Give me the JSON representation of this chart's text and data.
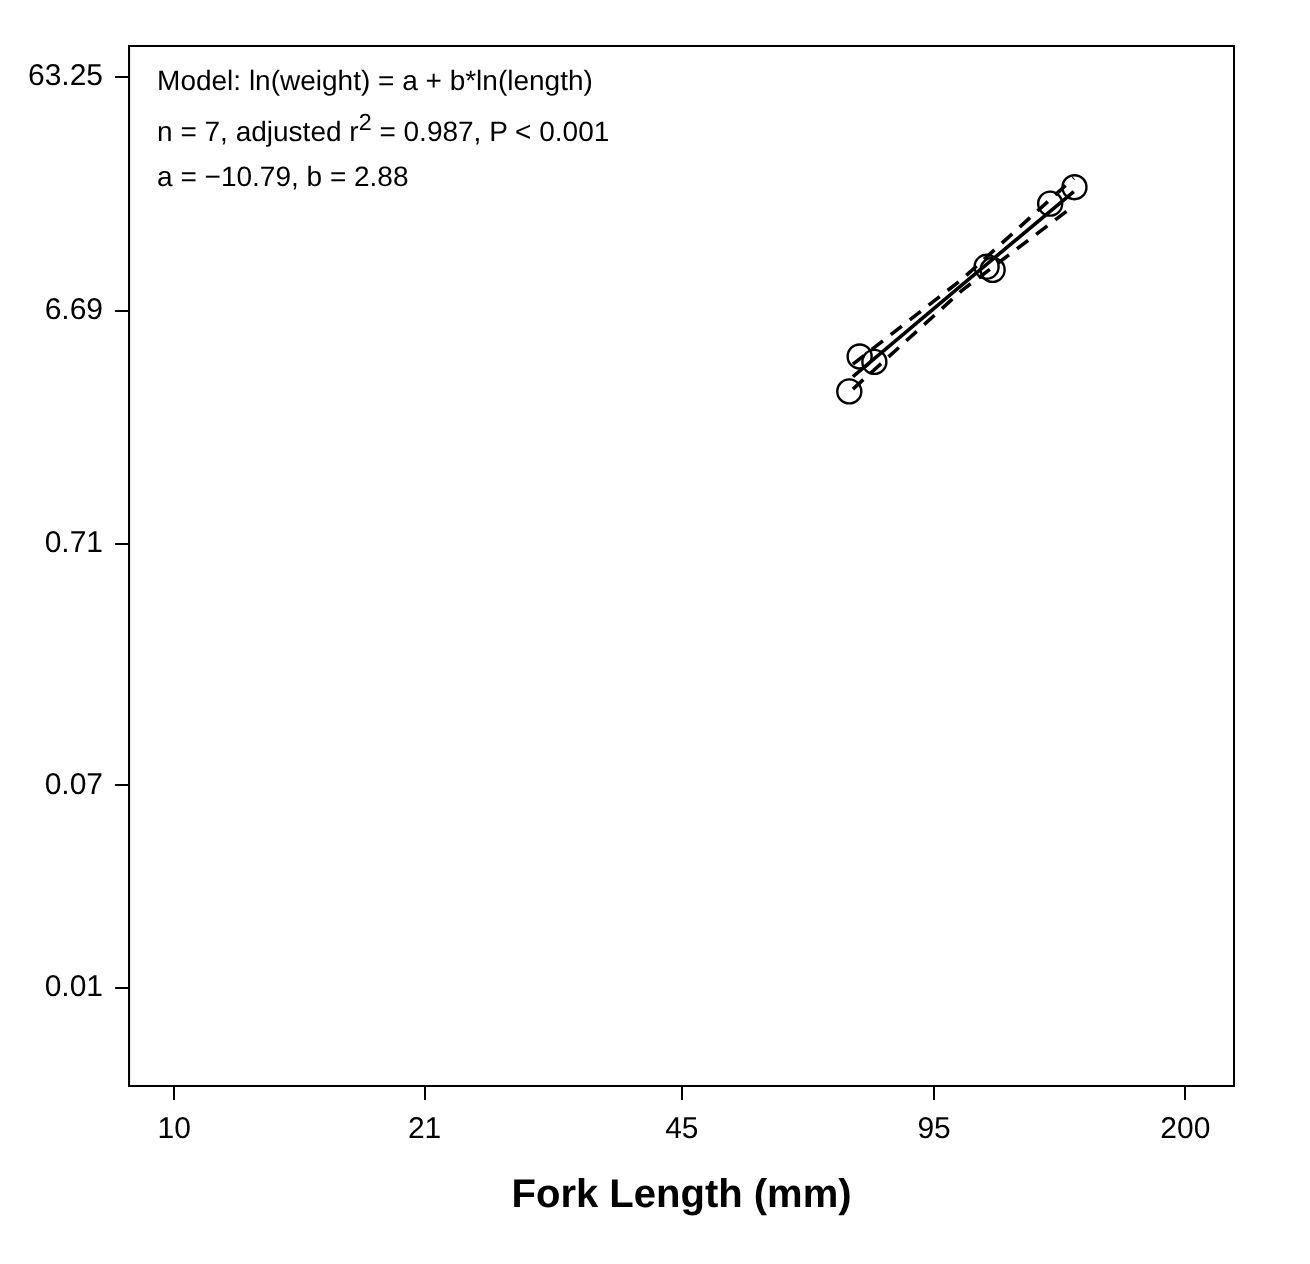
{
  "chart_data": {
    "type": "scatter",
    "xlabel": "Fork Length (mm)",
    "log": "xy",
    "grid": false,
    "legend": false,
    "xlim": [
      8.75,
      231
    ],
    "xticks": [
      10,
      21,
      45,
      95,
      200
    ],
    "ylim": [
      0.0039,
      85
    ],
    "yticks": [
      0.01,
      0.07,
      0.71,
      6.69,
      63.25
    ],
    "annotations": [
      "Model: ln(weight) = a + b*ln(length)",
      "n = 7, adjusted r$^{2}$ = 0.987, P < 0.001",
      "a = −10.79, b = 2.88"
    ],
    "series": [
      {
        "color": "#000000",
        "marker": "circle",
        "x": [
          73.9,
          76.2,
          79.6,
          111,
          113,
          134,
          144
        ],
        "values": [
          3.08,
          4.31,
          4.09,
          10.2,
          9.9,
          18.7,
          21.9
        ]
      },
      {
        "type": "line",
        "color": "#000000",
        "marker": "none",
        "line_style": "solid",
        "x": [
          74.7,
          103.3,
          143.7
        ],
        "values": [
          3.55,
          8.59,
          21.0
        ]
      },
      {
        "type": "line",
        "color": "#000000",
        "marker": "none",
        "line_style": "dashed",
        "x": [
          74.7,
          103.3,
          143.7
        ],
        "values": [
          3.15,
          8.15,
          18.3
        ]
      },
      {
        "type": "line",
        "color": "#000000",
        "marker": "none",
        "line_style": "dashed",
        "x": [
          74.7,
          103.3,
          143.7
        ],
        "values": [
          4.0,
          9.07,
          23.9
        ]
      }
    ]
  }
}
